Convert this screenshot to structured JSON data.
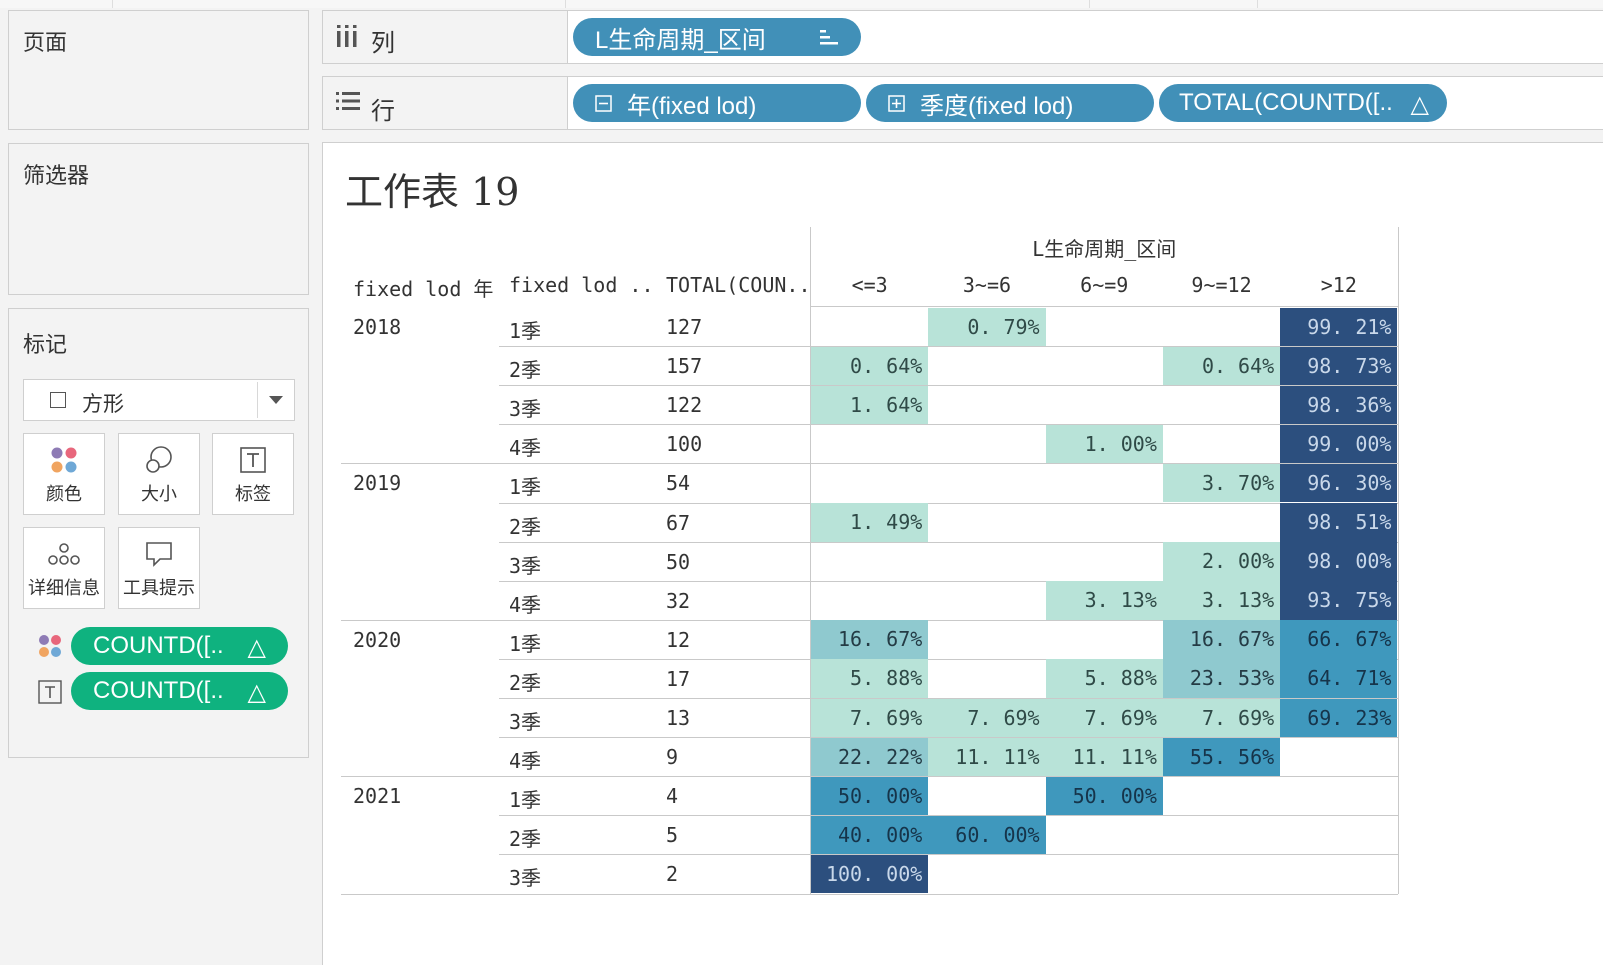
{
  "sidebar": {
    "pages_title": "页面",
    "filters_title": "筛选器",
    "marks_title": "标记",
    "mark_type": "方形",
    "buttons": {
      "color": "颜色",
      "size": "大小",
      "label": "标签",
      "detail": "详细信息",
      "tooltip": "工具提示"
    },
    "mark_fields": [
      "COUNTD([..",
      "COUNTD([.."
    ]
  },
  "shelves": {
    "columns_label": "列",
    "rows_label": "行",
    "column_pills": [
      "L生命周期_区间"
    ],
    "row_pills": [
      "年(fixed lod)",
      "季度(fixed lod)",
      "TOTAL(COUNTD([.."
    ]
  },
  "colors": {
    "pill_blue": "#4190b8",
    "pill_green": "#0fb27f",
    "shade_1": "#b8e3d8",
    "shade_2": "#8fc9cf",
    "shade_3": "#3f98bd",
    "shade_4": "#2c4f7e"
  },
  "sheet": {
    "title": "工作表 19",
    "col_group_header": "L生命周期_区间",
    "row_headers": [
      "fixed lod 年",
      "fixed lod ..",
      "TOTAL(COUN.."
    ],
    "col_headers": [
      "<=3",
      "3~=6",
      "6~=9",
      "9~=12",
      ">12"
    ]
  },
  "chart_data": {
    "type": "table",
    "title": "工作表 19",
    "columns": [
      "<=3",
      "3~=6",
      "6~=9",
      "9~=12",
      ">12"
    ],
    "rows": [
      {
        "year": "2018",
        "quarter": "1季",
        "total": "127",
        "values": [
          "",
          "0.79%",
          "",
          "",
          "99.21%"
        ]
      },
      {
        "year": "",
        "quarter": "2季",
        "total": "157",
        "values": [
          "0.64%",
          "",
          "",
          "0.64%",
          "98.73%"
        ]
      },
      {
        "year": "",
        "quarter": "3季",
        "total": "122",
        "values": [
          "1.64%",
          "",
          "",
          "",
          "98.36%"
        ]
      },
      {
        "year": "",
        "quarter": "4季",
        "total": "100",
        "values": [
          "",
          "",
          "1.00%",
          "",
          "99.00%"
        ]
      },
      {
        "year": "2019",
        "quarter": "1季",
        "total": "54",
        "values": [
          "",
          "",
          "",
          "3.70%",
          "96.30%"
        ]
      },
      {
        "year": "",
        "quarter": "2季",
        "total": "67",
        "values": [
          "1.49%",
          "",
          "",
          "",
          "98.51%"
        ]
      },
      {
        "year": "",
        "quarter": "3季",
        "total": "50",
        "values": [
          "",
          "",
          "",
          "2.00%",
          "98.00%"
        ]
      },
      {
        "year": "",
        "quarter": "4季",
        "total": "32",
        "values": [
          "",
          "",
          "3.13%",
          "3.13%",
          "93.75%"
        ]
      },
      {
        "year": "2020",
        "quarter": "1季",
        "total": "12",
        "values": [
          "16.67%",
          "",
          "",
          "16.67%",
          "66.67%"
        ]
      },
      {
        "year": "",
        "quarter": "2季",
        "total": "17",
        "values": [
          "5.88%",
          "",
          "5.88%",
          "23.53%",
          "64.71%"
        ]
      },
      {
        "year": "",
        "quarter": "3季",
        "total": "13",
        "values": [
          "7.69%",
          "7.69%",
          "7.69%",
          "7.69%",
          "69.23%"
        ]
      },
      {
        "year": "",
        "quarter": "4季",
        "total": "9",
        "values": [
          "22.22%",
          "11.11%",
          "11.11%",
          "55.56%",
          ""
        ]
      },
      {
        "year": "2021",
        "quarter": "1季",
        "total": "4",
        "values": [
          "50.00%",
          "",
          "50.00%",
          "",
          ""
        ]
      },
      {
        "year": "",
        "quarter": "2季",
        "total": "5",
        "values": [
          "40.00%",
          "60.00%",
          "",
          "",
          ""
        ]
      },
      {
        "year": "",
        "quarter": "3季",
        "total": "2",
        "values": [
          "100.00%",
          "",
          "",
          "",
          ""
        ]
      }
    ]
  }
}
